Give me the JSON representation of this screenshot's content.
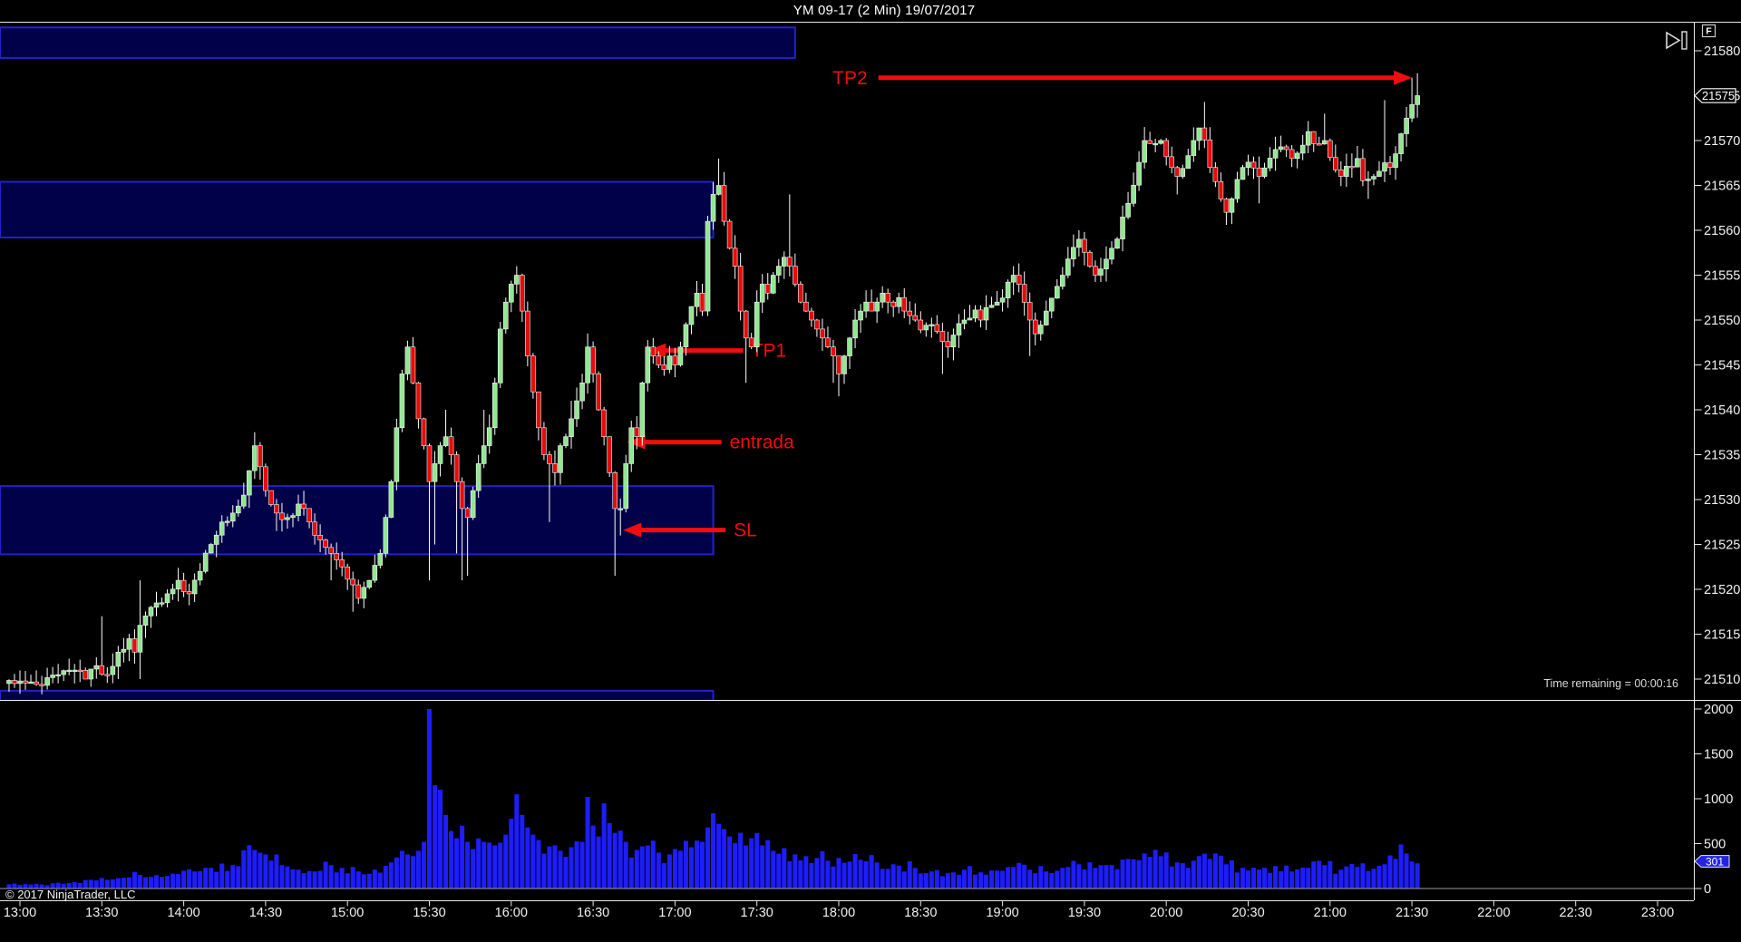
{
  "window": {
    "title": "YM 09-17 (2 Min)  19/07/2017"
  },
  "status": {
    "time_remaining": "Time remaining = 00:00:16",
    "copyright": "© 2017 NinjaTrader, LLC"
  },
  "toolbar": {
    "fixed_scale_label": "F",
    "go_to_end_icon": "skip-to-end-icon"
  },
  "price_axis": {
    "marker": "21575"
  },
  "volume_axis": {
    "marker": "301"
  },
  "colors": {
    "background": "#000000",
    "candle_up": "#92e692",
    "candle_down": "#e60c0c",
    "candle_outline": "#f4f4f4",
    "wick": "#ffffff",
    "volume_bar": "#1d1dff",
    "zone_fill": "#01014a",
    "zone_border": "#2222c8",
    "annotation": "#f20d0d",
    "axis_line": "#e8e8e8",
    "axis_text": "#f2f2f2",
    "zero_line": "#9a9a9a",
    "marker_box_fill": "#000000",
    "volume_marker_fill": "#2424e0"
  },
  "chart_data": {
    "type": "candlestick",
    "title": "YM 09-17 (2 Min)  19/07/2017",
    "interval_minutes_per_bar": 2,
    "x_axis": {
      "start": "13:00",
      "end": "23:00",
      "tick_interval_min": 30,
      "ticks": [
        "13:00",
        "13:30",
        "14:00",
        "14:30",
        "15:00",
        "15:30",
        "16:00",
        "16:30",
        "17:00",
        "17:30",
        "18:00",
        "18:30",
        "19:00",
        "19:30",
        "20:00",
        "20:30",
        "21:00",
        "21:30",
        "22:00",
        "22:30",
        "23:00"
      ]
    },
    "y_axis": {
      "min": 21506,
      "max": 21583,
      "tick_step": 5,
      "ticks": [
        21510,
        21515,
        21520,
        21525,
        21530,
        21535,
        21540,
        21545,
        21550,
        21555,
        21560,
        21565,
        21570,
        21575,
        21580
      ]
    },
    "volume_axis": {
      "min": 0,
      "max": 2100,
      "ticks": [
        0,
        500,
        1000,
        1500,
        2000
      ],
      "marker_value": 301
    },
    "price_marker_value": 21575,
    "candles": {
      "start_min": -4,
      "end_min": 514
    },
    "price_anchors": [
      [
        -4,
        21509.5
      ],
      [
        0,
        21509.5
      ],
      [
        10,
        21509.3
      ],
      [
        16,
        21510.5
      ],
      [
        22,
        21511
      ],
      [
        26,
        21510
      ],
      [
        30,
        21511.5
      ],
      [
        34,
        21510.5
      ],
      [
        38,
        21513
      ],
      [
        42,
        21514.5
      ],
      [
        44,
        21513
      ],
      [
        46,
        21516
      ],
      [
        50,
        21518
      ],
      [
        56,
        21519.5
      ],
      [
        60,
        21521
      ],
      [
        64,
        21519.5
      ],
      [
        68,
        21522
      ],
      [
        72,
        21525
      ],
      [
        76,
        21527.5
      ],
      [
        80,
        21528.5
      ],
      [
        84,
        21530.5
      ],
      [
        88,
        21536
      ],
      [
        92,
        21531
      ],
      [
        96,
        21528.5
      ],
      [
        100,
        21528
      ],
      [
        104,
        21529.5
      ],
      [
        108,
        21527.5
      ],
      [
        112,
        21525.5
      ],
      [
        116,
        21524
      ],
      [
        120,
        21522.5
      ],
      [
        124,
        21520.5
      ],
      [
        126,
        21519
      ],
      [
        130,
        21521
      ],
      [
        134,
        21524
      ],
      [
        138,
        21532
      ],
      [
        140,
        21538
      ],
      [
        142,
        21544
      ],
      [
        144,
        21547
      ],
      [
        146,
        21543
      ],
      [
        148,
        21539
      ],
      [
        150,
        21536
      ],
      [
        152,
        21532
      ],
      [
        154,
        21534
      ],
      [
        156,
        21536
      ],
      [
        158,
        21537
      ],
      [
        160,
        21535
      ],
      [
        162,
        21532
      ],
      [
        164,
        21529
      ],
      [
        166,
        21528
      ],
      [
        168,
        21531
      ],
      [
        170,
        21534
      ],
      [
        172,
        21536
      ],
      [
        174,
        21538
      ],
      [
        176,
        21543
      ],
      [
        178,
        21549
      ],
      [
        180,
        21552
      ],
      [
        182,
        21554
      ],
      [
        184,
        21555
      ],
      [
        186,
        21551
      ],
      [
        188,
        21546
      ],
      [
        190,
        21542
      ],
      [
        192,
        21538
      ],
      [
        194,
        21535
      ],
      [
        196,
        21534
      ],
      [
        198,
        21533
      ],
      [
        200,
        21536
      ],
      [
        202,
        21537
      ],
      [
        204,
        21539
      ],
      [
        206,
        21541
      ],
      [
        208,
        21543
      ],
      [
        210,
        21547
      ],
      [
        212,
        21544
      ],
      [
        214,
        21540
      ],
      [
        216,
        21537
      ],
      [
        218,
        21533
      ],
      [
        220,
        21529
      ],
      [
        222,
        21529
      ],
      [
        224,
        21534
      ],
      [
        226,
        21538
      ],
      [
        228,
        21537
      ],
      [
        230,
        21543
      ],
      [
        232,
        21547
      ],
      [
        234,
        21546
      ],
      [
        236,
        21545
      ],
      [
        238,
        21544.5
      ],
      [
        240,
        21546
      ],
      [
        242,
        21545
      ],
      [
        244,
        21547
      ],
      [
        246,
        21549.5
      ],
      [
        248,
        21551.5
      ],
      [
        250,
        21553
      ],
      [
        252,
        21551
      ],
      [
        254,
        21561
      ],
      [
        256,
        21564
      ],
      [
        258,
        21565
      ],
      [
        260,
        21561
      ],
      [
        262,
        21558
      ],
      [
        264,
        21556
      ],
      [
        266,
        21551
      ],
      [
        268,
        21548
      ],
      [
        270,
        21547
      ],
      [
        272,
        21552
      ],
      [
        274,
        21554
      ],
      [
        276,
        21553
      ],
      [
        278,
        21555
      ],
      [
        280,
        21556
      ],
      [
        282,
        21557
      ],
      [
        284,
        21556
      ],
      [
        286,
        21554
      ],
      [
        288,
        21552
      ],
      [
        290,
        21551
      ],
      [
        292,
        21550
      ],
      [
        294,
        21549
      ],
      [
        296,
        21548
      ],
      [
        298,
        21547
      ],
      [
        300,
        21546
      ],
      [
        302,
        21544
      ],
      [
        304,
        21546
      ],
      [
        306,
        21548
      ],
      [
        308,
        21550
      ],
      [
        310,
        21551
      ],
      [
        312,
        21552
      ],
      [
        314,
        21551
      ],
      [
        316,
        21552
      ],
      [
        318,
        21553
      ],
      [
        320,
        21552
      ],
      [
        322,
        21551.5
      ],
      [
        324,
        21552.5
      ],
      [
        326,
        21551
      ],
      [
        328,
        21550.5
      ],
      [
        330,
        21550
      ],
      [
        333,
        21549
      ],
      [
        336,
        21549.5
      ],
      [
        339,
        21548
      ],
      [
        342,
        21547
      ],
      [
        345,
        21549
      ],
      [
        348,
        21550
      ],
      [
        351,
        21551
      ],
      [
        354,
        21550
      ],
      [
        357,
        21551.5
      ],
      [
        360,
        21552
      ],
      [
        363,
        21553.5
      ],
      [
        366,
        21555
      ],
      [
        369,
        21553
      ],
      [
        372,
        21550
      ],
      [
        375,
        21548
      ],
      [
        378,
        21551
      ],
      [
        381,
        21553
      ],
      [
        384,
        21555
      ],
      [
        387,
        21557
      ],
      [
        390,
        21559
      ],
      [
        393,
        21557
      ],
      [
        396,
        21555
      ],
      [
        399,
        21556
      ],
      [
        402,
        21558
      ],
      [
        405,
        21560
      ],
      [
        408,
        21563
      ],
      [
        411,
        21566
      ],
      [
        414,
        21570
      ],
      [
        417,
        21569
      ],
      [
        420,
        21570
      ],
      [
        423,
        21568
      ],
      [
        426,
        21566
      ],
      [
        429,
        21568
      ],
      [
        432,
        21570
      ],
      [
        435,
        21572
      ],
      [
        438,
        21567
      ],
      [
        441,
        21564
      ],
      [
        444,
        21562
      ],
      [
        447,
        21565
      ],
      [
        450,
        21567
      ],
      [
        453,
        21568
      ],
      [
        456,
        21566
      ],
      [
        459,
        21567
      ],
      [
        462,
        21569
      ],
      [
        465,
        21569.5
      ],
      [
        468,
        21568
      ],
      [
        471,
        21569
      ],
      [
        474,
        21571
      ],
      [
        477,
        21569
      ],
      [
        480,
        21570
      ],
      [
        483,
        21567
      ],
      [
        486,
        21566
      ],
      [
        489,
        21567
      ],
      [
        492,
        21568
      ],
      [
        495,
        21565
      ],
      [
        498,
        21566
      ],
      [
        501,
        21567
      ],
      [
        504,
        21567
      ],
      [
        507,
        21570
      ],
      [
        510,
        21572.5
      ],
      [
        512,
        21574
      ],
      [
        514,
        21575
      ]
    ],
    "wick_events": [
      [
        32,
        21517,
        null
      ],
      [
        45,
        21521,
        21510
      ],
      [
        88,
        21537.5,
        null
      ],
      [
        96,
        null,
        21526.5
      ],
      [
        116,
        null,
        21521
      ],
      [
        124,
        null,
        21517.5
      ],
      [
        144,
        21547.5,
        null
      ],
      [
        152,
        null,
        21521
      ],
      [
        154,
        null,
        21525
      ],
      [
        158,
        21540,
        null
      ],
      [
        162,
        null,
        21524
      ],
      [
        164,
        null,
        21521
      ],
      [
        166,
        null,
        21521.5
      ],
      [
        172,
        21540,
        null
      ],
      [
        184,
        21556,
        null
      ],
      [
        196,
        null,
        21527.5
      ],
      [
        204,
        21541,
        null
      ],
      [
        210,
        21548.5,
        null
      ],
      [
        220,
        null,
        21521.5
      ],
      [
        222,
        null,
        21526
      ],
      [
        232,
        21547.5,
        null
      ],
      [
        258,
        21568,
        null
      ],
      [
        268,
        null,
        21543
      ],
      [
        284,
        21564,
        null
      ],
      [
        300,
        null,
        21543
      ],
      [
        302,
        null,
        21541.5
      ],
      [
        339,
        null,
        21544
      ],
      [
        366,
        21556,
        null
      ],
      [
        372,
        null,
        21546
      ],
      [
        390,
        21560,
        null
      ],
      [
        411,
        21568,
        null
      ],
      [
        414,
        21571.5,
        null
      ],
      [
        426,
        null,
        21564
      ],
      [
        435,
        21574.3,
        null
      ],
      [
        444,
        null,
        21561
      ],
      [
        456,
        null,
        21563
      ],
      [
        474,
        21572,
        null
      ],
      [
        480,
        21573,
        null
      ],
      [
        495,
        null,
        21563.5
      ],
      [
        501,
        21574.5,
        null
      ],
      [
        512,
        21577,
        null
      ],
      [
        514,
        21577.5,
        null
      ]
    ],
    "volume_anchors": [
      [
        -4,
        60
      ],
      [
        0,
        55
      ],
      [
        10,
        45
      ],
      [
        20,
        60
      ],
      [
        30,
        90
      ],
      [
        40,
        120
      ],
      [
        45,
        220
      ],
      [
        50,
        130
      ],
      [
        56,
        140
      ],
      [
        60,
        160
      ],
      [
        66,
        190
      ],
      [
        72,
        230
      ],
      [
        80,
        260
      ],
      [
        88,
        430
      ],
      [
        92,
        380
      ],
      [
        98,
        260
      ],
      [
        104,
        210
      ],
      [
        110,
        190
      ],
      [
        116,
        260
      ],
      [
        120,
        230
      ],
      [
        126,
        190
      ],
      [
        132,
        210
      ],
      [
        138,
        290
      ],
      [
        144,
        380
      ],
      [
        148,
        420
      ],
      [
        150,
        520
      ],
      [
        152,
        2000
      ],
      [
        154,
        1150
      ],
      [
        156,
        1100
      ],
      [
        158,
        820
      ],
      [
        160,
        640
      ],
      [
        162,
        560
      ],
      [
        164,
        700
      ],
      [
        166,
        520
      ],
      [
        168,
        440
      ],
      [
        172,
        520
      ],
      [
        176,
        480
      ],
      [
        180,
        600
      ],
      [
        184,
        1050
      ],
      [
        186,
        820
      ],
      [
        188,
        680
      ],
      [
        192,
        540
      ],
      [
        196,
        470
      ],
      [
        200,
        420
      ],
      [
        204,
        460
      ],
      [
        208,
        520
      ],
      [
        210,
        1020
      ],
      [
        212,
        700
      ],
      [
        214,
        580
      ],
      [
        216,
        950
      ],
      [
        220,
        620
      ],
      [
        224,
        520
      ],
      [
        228,
        430
      ],
      [
        232,
        480
      ],
      [
        236,
        400
      ],
      [
        240,
        380
      ],
      [
        244,
        420
      ],
      [
        248,
        460
      ],
      [
        252,
        520
      ],
      [
        254,
        680
      ],
      [
        258,
        720
      ],
      [
        262,
        580
      ],
      [
        266,
        620
      ],
      [
        270,
        560
      ],
      [
        274,
        480
      ],
      [
        278,
        420
      ],
      [
        282,
        450
      ],
      [
        286,
        380
      ],
      [
        290,
        360
      ],
      [
        294,
        340
      ],
      [
        298,
        310
      ],
      [
        302,
        340
      ],
      [
        306,
        300
      ],
      [
        310,
        320
      ],
      [
        316,
        290
      ],
      [
        322,
        270
      ],
      [
        330,
        230
      ],
      [
        336,
        190
      ],
      [
        342,
        170
      ],
      [
        348,
        210
      ],
      [
        354,
        180
      ],
      [
        360,
        200
      ],
      [
        366,
        240
      ],
      [
        372,
        210
      ],
      [
        378,
        190
      ],
      [
        384,
        230
      ],
      [
        390,
        270
      ],
      [
        396,
        230
      ],
      [
        402,
        260
      ],
      [
        408,
        330
      ],
      [
        414,
        390
      ],
      [
        420,
        360
      ],
      [
        426,
        290
      ],
      [
        432,
        310
      ],
      [
        438,
        330
      ],
      [
        444,
        270
      ],
      [
        450,
        230
      ],
      [
        456,
        210
      ],
      [
        462,
        250
      ],
      [
        468,
        190
      ],
      [
        474,
        230
      ],
      [
        480,
        260
      ],
      [
        486,
        210
      ],
      [
        492,
        240
      ],
      [
        495,
        280
      ],
      [
        498,
        220
      ],
      [
        502,
        270
      ],
      [
        506,
        330
      ],
      [
        509,
        430
      ],
      [
        510,
        390
      ],
      [
        512,
        301
      ]
    ],
    "zones": [
      {
        "top": 21582.6,
        "bottom": 21579.2,
        "end_min": 284
      },
      {
        "top": 21565.4,
        "bottom": 21559.2,
        "end_min": 254
      },
      {
        "top": 21531.5,
        "bottom": 21523.9,
        "end_min": 254
      },
      {
        "top": 21508.7,
        "bottom": 21505.5,
        "end_min": 254
      }
    ],
    "annotations": [
      {
        "label": "TP2",
        "price": 21577.0,
        "tip_min": 510,
        "tail_min": 314.5,
        "dir": "right"
      },
      {
        "label": "TP1",
        "price": 21546.6,
        "tip_min": 230,
        "tail_min": 265,
        "dir": "left"
      },
      {
        "label": "entrada",
        "price": 21536.4,
        "tip_min": 222.5,
        "tail_min": 257,
        "dir": "left"
      },
      {
        "label": "SL",
        "price": 21526.6,
        "tip_min": 221,
        "tail_min": 258.5,
        "dir": "left"
      }
    ]
  }
}
